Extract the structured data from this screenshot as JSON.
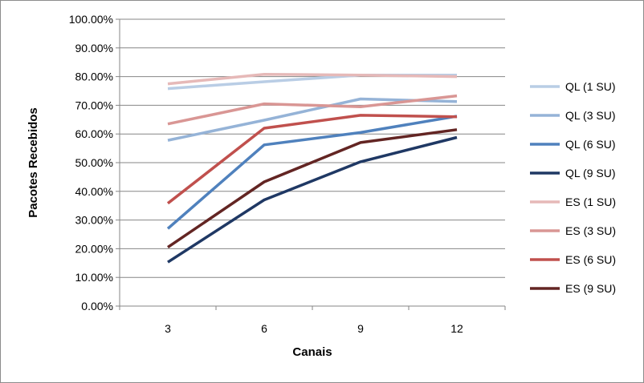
{
  "chart_data": {
    "type": "line",
    "title": "",
    "xlabel": "Canais",
    "ylabel": "Pacotes Recebidos",
    "categories": [
      "3",
      "6",
      "9",
      "12"
    ],
    "ylim": [
      0,
      100
    ],
    "yticks": [
      "0.00%",
      "10.00%",
      "20.00%",
      "30.00%",
      "40.00%",
      "50.00%",
      "60.00%",
      "70.00%",
      "80.00%",
      "90.00%",
      "100.00%"
    ],
    "grid": "horizontal",
    "legend_position": "right",
    "series": [
      {
        "name": "QL (1 SU)",
        "color": "#b9cde5",
        "values": [
          75.8,
          78.2,
          80.5,
          80.5
        ]
      },
      {
        "name": "QL (3 SU)",
        "color": "#95b3d7",
        "values": [
          57.8,
          64.8,
          72.2,
          71.3
        ]
      },
      {
        "name": "QL (6 SU)",
        "color": "#4f81bd",
        "values": [
          27.0,
          56.2,
          60.5,
          66.2
        ]
      },
      {
        "name": "QL (9 SU)",
        "color": "#1f3864",
        "values": [
          15.3,
          37.0,
          50.3,
          58.8
        ]
      },
      {
        "name": "ES (1 SU)",
        "color": "#e6b9b8",
        "values": [
          77.5,
          80.8,
          80.5,
          80.0
        ]
      },
      {
        "name": "ES (3 SU)",
        "color": "#d99694",
        "values": [
          63.5,
          70.5,
          69.5,
          73.3
        ]
      },
      {
        "name": "ES (6 SU)",
        "color": "#c0504d",
        "values": [
          35.8,
          62.0,
          66.5,
          66.0
        ]
      },
      {
        "name": "ES (9 SU)",
        "color": "#632523",
        "values": [
          20.5,
          43.3,
          57.0,
          61.5
        ]
      }
    ]
  }
}
